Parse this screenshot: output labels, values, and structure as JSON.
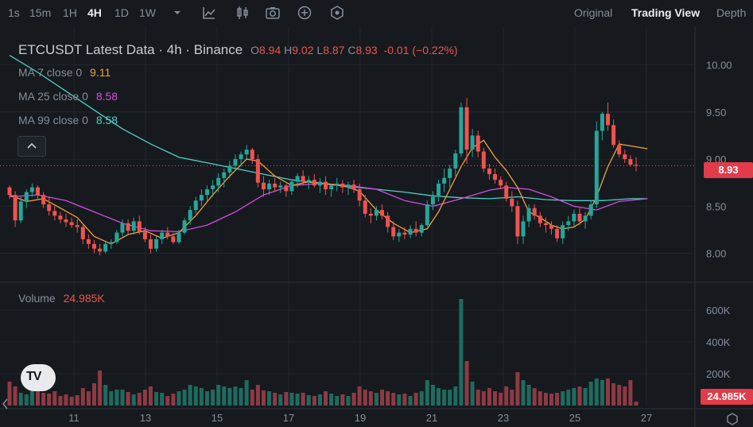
{
  "toolbar": {
    "timeframes": [
      {
        "label": "1s",
        "active": false
      },
      {
        "label": "15m",
        "active": false
      },
      {
        "label": "1H",
        "active": false
      },
      {
        "label": "4H",
        "active": true
      },
      {
        "label": "1D",
        "active": false
      },
      {
        "label": "1W",
        "active": false
      }
    ],
    "icons": [
      "chevron-down-icon",
      "indicator-icon",
      "candle-type-icon",
      "camera-icon",
      "plus-circle-icon",
      "settings-hex-icon"
    ],
    "views": [
      {
        "label": "Original",
        "active": false
      },
      {
        "label": "Trading View",
        "active": true
      },
      {
        "label": "Depth",
        "active": false
      }
    ]
  },
  "legend": {
    "title": "ETCUSDT Latest Data · 4h · Binance",
    "ohlc": [
      {
        "key": "O",
        "value": "8.94"
      },
      {
        "key": "H",
        "value": "9.02"
      },
      {
        "key": "L",
        "value": "8.87"
      },
      {
        "key": "C",
        "value": "8.93"
      }
    ],
    "change": "-0.01 (−0.22%)",
    "ma7": {
      "label": "MA 7 close 0",
      "value": "9.11",
      "color": "#f0a040"
    },
    "ma25": {
      "label": "MA 25 close 0",
      "value": "8.58",
      "color": "#d04ee0"
    },
    "ma99": {
      "label": "MA 99 close 0",
      "value": "8.58",
      "color": "#4fd1c5"
    },
    "volume_label": "Volume",
    "volume_value": "24.985K"
  },
  "price_tag": "8.93",
  "volume_tag": "24.985K",
  "colors": {
    "up": "#26a69a",
    "down": "#ef5350",
    "vol_up": "#1f6b60",
    "vol_down": "#8e3a44",
    "grid": "#23272d"
  },
  "chart_data": {
    "type": "candlestick",
    "symbol": "ETCUSDT",
    "interval": "4h",
    "exchange": "Binance",
    "price_ticks": [
      "10.00",
      "9.50",
      "9.00",
      "8.50",
      "8.00"
    ],
    "volume_ticks": [
      "600K",
      "400K",
      "200K"
    ],
    "x_ticks": [
      "11",
      "13",
      "15",
      "17",
      "19",
      "21",
      "23",
      "25",
      "27"
    ],
    "price_range": [
      7.82,
      10.35
    ],
    "volume_max": 700,
    "candles": [
      [
        8.7,
        8.72,
        8.58,
        8.62,
        150
      ],
      [
        8.62,
        8.66,
        8.28,
        8.35,
        120
      ],
      [
        8.35,
        8.6,
        8.32,
        8.55,
        80
      ],
      [
        8.55,
        8.68,
        8.48,
        8.65,
        70
      ],
      [
        8.65,
        8.74,
        8.6,
        8.7,
        90
      ],
      [
        8.7,
        8.72,
        8.58,
        8.62,
        95
      ],
      [
        8.62,
        8.65,
        8.48,
        8.52,
        80
      ],
      [
        8.52,
        8.6,
        8.4,
        8.45,
        75
      ],
      [
        8.45,
        8.5,
        8.35,
        8.4,
        90
      ],
      [
        8.4,
        8.44,
        8.32,
        8.36,
        60
      ],
      [
        8.36,
        8.42,
        8.28,
        8.33,
        70
      ],
      [
        8.33,
        8.38,
        8.27,
        8.3,
        55
      ],
      [
        8.3,
        8.36,
        8.22,
        8.28,
        65
      ],
      [
        8.28,
        8.32,
        8.1,
        8.15,
        110
      ],
      [
        8.15,
        8.2,
        8.05,
        8.1,
        90
      ],
      [
        8.1,
        8.14,
        8.0,
        8.05,
        140
      ],
      [
        8.05,
        8.1,
        7.98,
        8.02,
        220
      ],
      [
        8.02,
        8.12,
        8.0,
        8.1,
        130
      ],
      [
        8.1,
        8.15,
        8.05,
        8.12,
        90
      ],
      [
        8.12,
        8.25,
        8.1,
        8.22,
        100
      ],
      [
        8.22,
        8.36,
        8.18,
        8.32,
        100
      ],
      [
        8.32,
        8.36,
        8.2,
        8.24,
        85
      ],
      [
        8.24,
        8.38,
        8.2,
        8.34,
        70
      ],
      [
        8.34,
        8.4,
        8.2,
        8.23,
        80
      ],
      [
        8.23,
        8.28,
        8.12,
        8.15,
        100
      ],
      [
        8.15,
        8.2,
        8.0,
        8.05,
        120
      ],
      [
        8.05,
        8.18,
        8.02,
        8.15,
        85
      ],
      [
        8.15,
        8.25,
        8.1,
        8.22,
        80
      ],
      [
        8.22,
        8.28,
        8.15,
        8.18,
        60
      ],
      [
        8.18,
        8.22,
        8.1,
        8.12,
        75
      ],
      [
        8.12,
        8.25,
        8.1,
        8.22,
        90
      ],
      [
        8.22,
        8.38,
        8.2,
        8.35,
        100
      ],
      [
        8.35,
        8.5,
        8.3,
        8.46,
        130
      ],
      [
        8.46,
        8.6,
        8.42,
        8.56,
        120
      ],
      [
        8.56,
        8.68,
        8.5,
        8.62,
        110
      ],
      [
        8.62,
        8.72,
        8.55,
        8.68,
        90
      ],
      [
        8.68,
        8.78,
        8.6,
        8.72,
        100
      ],
      [
        8.72,
        8.85,
        8.65,
        8.8,
        130
      ],
      [
        8.8,
        8.9,
        8.7,
        8.86,
        120
      ],
      [
        8.86,
        8.98,
        8.8,
        8.93,
        110
      ],
      [
        8.93,
        9.05,
        8.88,
        9.0,
        120
      ],
      [
        9.0,
        9.08,
        8.92,
        9.05,
        110
      ],
      [
        9.05,
        9.15,
        9.0,
        9.1,
        160
      ],
      [
        9.1,
        9.12,
        8.95,
        9.0,
        100
      ],
      [
        9.0,
        9.05,
        8.7,
        8.75,
        130
      ],
      [
        8.75,
        8.82,
        8.6,
        8.68,
        95
      ],
      [
        8.68,
        8.78,
        8.62,
        8.74,
        90
      ],
      [
        8.74,
        8.8,
        8.65,
        8.7,
        80
      ],
      [
        8.7,
        8.76,
        8.64,
        8.72,
        70
      ],
      [
        8.72,
        8.74,
        8.6,
        8.66,
        85
      ],
      [
        8.66,
        8.78,
        8.62,
        8.76,
        80
      ],
      [
        8.76,
        8.85,
        8.7,
        8.82,
        75
      ],
      [
        8.82,
        8.88,
        8.72,
        8.76,
        80
      ],
      [
        8.76,
        8.82,
        8.68,
        8.78,
        65
      ],
      [
        8.78,
        8.84,
        8.7,
        8.72,
        60
      ],
      [
        8.72,
        8.8,
        8.64,
        8.76,
        70
      ],
      [
        8.76,
        8.82,
        8.62,
        8.68,
        90
      ],
      [
        8.68,
        8.74,
        8.6,
        8.72,
        75
      ],
      [
        8.72,
        8.8,
        8.66,
        8.74,
        60
      ],
      [
        8.74,
        8.78,
        8.64,
        8.7,
        70
      ],
      [
        8.7,
        8.76,
        8.62,
        8.73,
        60
      ],
      [
        8.73,
        8.78,
        8.64,
        8.68,
        80
      ],
      [
        8.68,
        8.74,
        8.5,
        8.56,
        120
      ],
      [
        8.56,
        8.62,
        8.38,
        8.42,
        100
      ],
      [
        8.42,
        8.48,
        8.32,
        8.4,
        90
      ],
      [
        8.4,
        8.5,
        8.35,
        8.46,
        80
      ],
      [
        8.46,
        8.52,
        8.36,
        8.4,
        100
      ],
      [
        8.4,
        8.44,
        8.22,
        8.28,
        90
      ],
      [
        8.28,
        8.34,
        8.14,
        8.18,
        80
      ],
      [
        8.18,
        8.26,
        8.12,
        8.22,
        70
      ],
      [
        8.22,
        8.28,
        8.15,
        8.2,
        75
      ],
      [
        8.2,
        8.3,
        8.16,
        8.26,
        60
      ],
      [
        8.26,
        8.34,
        8.18,
        8.22,
        80
      ],
      [
        8.22,
        8.32,
        8.18,
        8.3,
        90
      ],
      [
        8.3,
        8.56,
        8.28,
        8.52,
        160
      ],
      [
        8.52,
        8.66,
        8.46,
        8.6,
        130
      ],
      [
        8.6,
        8.78,
        8.55,
        8.74,
        110
      ],
      [
        8.74,
        8.9,
        8.65,
        8.8,
        100
      ],
      [
        8.8,
        8.94,
        8.7,
        8.9,
        100
      ],
      [
        8.9,
        9.1,
        8.82,
        9.06,
        120
      ],
      [
        9.06,
        9.6,
        9.02,
        9.55,
        670
      ],
      [
        9.55,
        9.65,
        8.95,
        9.1,
        280
      ],
      [
        9.1,
        9.32,
        9.02,
        9.25,
        150
      ],
      [
        9.25,
        9.3,
        9.02,
        9.08,
        100
      ],
      [
        9.08,
        9.12,
        8.86,
        8.9,
        90
      ],
      [
        8.9,
        8.95,
        8.78,
        8.84,
        110
      ],
      [
        8.84,
        8.9,
        8.74,
        8.78,
        90
      ],
      [
        8.78,
        8.82,
        8.68,
        8.72,
        80
      ],
      [
        8.72,
        8.76,
        8.55,
        8.58,
        120
      ],
      [
        8.58,
        8.66,
        8.44,
        8.5,
        100
      ],
      [
        8.5,
        8.56,
        8.1,
        8.18,
        210
      ],
      [
        8.18,
        8.4,
        8.1,
        8.34,
        160
      ],
      [
        8.34,
        8.52,
        8.28,
        8.48,
        130
      ],
      [
        8.48,
        8.52,
        8.36,
        8.4,
        110
      ],
      [
        8.4,
        8.44,
        8.28,
        8.32,
        90
      ],
      [
        8.32,
        8.38,
        8.22,
        8.3,
        80
      ],
      [
        8.3,
        8.34,
        8.2,
        8.26,
        75
      ],
      [
        8.26,
        8.3,
        8.12,
        8.16,
        80
      ],
      [
        8.16,
        8.34,
        8.1,
        8.3,
        90
      ],
      [
        8.3,
        8.4,
        8.24,
        8.34,
        100
      ],
      [
        8.34,
        8.46,
        8.28,
        8.42,
        110
      ],
      [
        8.42,
        8.48,
        8.3,
        8.34,
        120
      ],
      [
        8.34,
        8.44,
        8.26,
        8.4,
        110
      ],
      [
        8.4,
        8.56,
        8.36,
        8.52,
        150
      ],
      [
        8.52,
        9.4,
        8.48,
        9.3,
        170
      ],
      [
        9.3,
        9.5,
        9.2,
        9.48,
        160
      ],
      [
        9.48,
        9.6,
        9.3,
        9.36,
        170
      ],
      [
        9.36,
        9.42,
        9.12,
        9.15,
        140
      ],
      [
        9.15,
        9.2,
        9.02,
        9.05,
        130
      ],
      [
        9.05,
        9.1,
        8.96,
        9.0,
        120
      ],
      [
        9.0,
        9.04,
        8.92,
        8.94,
        160
      ],
      [
        8.94,
        9.02,
        8.87,
        8.93,
        25
      ]
    ],
    "ma7_path": [
      [
        0,
        8.62
      ],
      [
        3,
        8.55
      ],
      [
        6,
        8.58
      ],
      [
        9,
        8.48
      ],
      [
        12,
        8.38
      ],
      [
        15,
        8.18
      ],
      [
        18,
        8.1
      ],
      [
        21,
        8.2
      ],
      [
        24,
        8.24
      ],
      [
        27,
        8.16
      ],
      [
        30,
        8.22
      ],
      [
        33,
        8.4
      ],
      [
        36,
        8.62
      ],
      [
        39,
        8.82
      ],
      [
        42,
        9.0
      ],
      [
        44,
        8.98
      ],
      [
        47,
        8.82
      ],
      [
        50,
        8.72
      ],
      [
        53,
        8.76
      ],
      [
        56,
        8.74
      ],
      [
        59,
        8.72
      ],
      [
        62,
        8.66
      ],
      [
        65,
        8.46
      ],
      [
        68,
        8.32
      ],
      [
        71,
        8.22
      ],
      [
        74,
        8.26
      ],
      [
        76,
        8.44
      ],
      [
        78,
        8.68
      ],
      [
        80,
        8.92
      ],
      [
        82,
        9.12
      ],
      [
        84,
        9.2
      ],
      [
        86,
        9.02
      ],
      [
        88,
        8.88
      ],
      [
        90,
        8.7
      ],
      [
        92,
        8.44
      ],
      [
        94,
        8.38
      ],
      [
        96,
        8.3
      ],
      [
        98,
        8.26
      ],
      [
        100,
        8.28
      ],
      [
        102,
        8.36
      ],
      [
        104,
        8.6
      ],
      [
        106,
        8.92
      ],
      [
        108,
        9.16
      ],
      [
        110,
        9.14
      ],
      [
        113,
        9.11
      ]
    ],
    "ma25_path": [
      [
        0,
        8.6
      ],
      [
        5,
        8.62
      ],
      [
        10,
        8.56
      ],
      [
        15,
        8.44
      ],
      [
        20,
        8.32
      ],
      [
        25,
        8.24
      ],
      [
        30,
        8.23
      ],
      [
        35,
        8.3
      ],
      [
        40,
        8.44
      ],
      [
        45,
        8.62
      ],
      [
        50,
        8.72
      ],
      [
        55,
        8.74
      ],
      [
        60,
        8.72
      ],
      [
        65,
        8.68
      ],
      [
        70,
        8.56
      ],
      [
        75,
        8.5
      ],
      [
        80,
        8.58
      ],
      [
        85,
        8.67
      ],
      [
        88,
        8.7
      ],
      [
        92,
        8.68
      ],
      [
        96,
        8.6
      ],
      [
        100,
        8.5
      ],
      [
        104,
        8.46
      ],
      [
        108,
        8.55
      ],
      [
        113,
        8.58
      ]
    ],
    "ma99_path": [
      [
        0,
        10.1
      ],
      [
        5,
        9.92
      ],
      [
        10,
        9.72
      ],
      [
        15,
        9.52
      ],
      [
        20,
        9.32
      ],
      [
        25,
        9.16
      ],
      [
        30,
        9.02
      ],
      [
        35,
        8.96
      ],
      [
        40,
        8.9
      ],
      [
        45,
        8.84
      ],
      [
        50,
        8.78
      ],
      [
        55,
        8.74
      ],
      [
        60,
        8.71
      ],
      [
        65,
        8.68
      ],
      [
        70,
        8.65
      ],
      [
        75,
        8.61
      ],
      [
        80,
        8.59
      ],
      [
        85,
        8.58
      ],
      [
        90,
        8.6
      ],
      [
        95,
        8.57
      ],
      [
        100,
        8.56
      ],
      [
        105,
        8.56
      ],
      [
        110,
        8.58
      ],
      [
        113,
        8.58
      ]
    ]
  }
}
